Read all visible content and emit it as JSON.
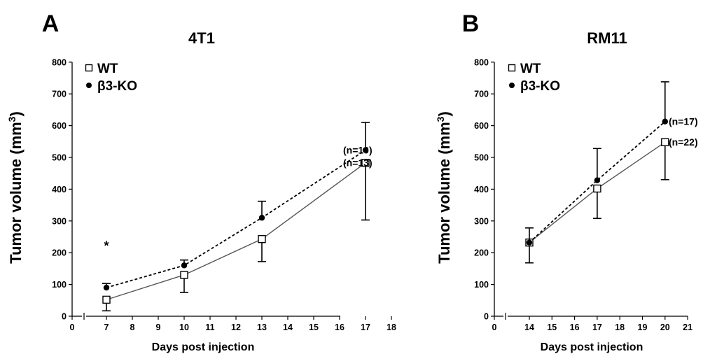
{
  "chart_data": [
    {
      "panel": "A",
      "type": "line",
      "title": "4T1",
      "xlabel": "Days post injection",
      "ylabel": "Tumor volume (mm",
      "ylabel_sup": "3",
      "ylabel_close": ")",
      "xlim": [
        0,
        18
      ],
      "ylim": [
        0,
        800
      ],
      "xticks": [
        0,
        7,
        8,
        9,
        10,
        11,
        12,
        13,
        14,
        15,
        16,
        17,
        18
      ],
      "yticks": [
        0,
        100,
        200,
        300,
        400,
        500,
        600,
        700,
        800
      ],
      "legend_position": "top-left",
      "series": [
        {
          "name": "WT",
          "marker": "open-square",
          "line": "solid",
          "x": [
            7,
            10,
            13,
            17
          ],
          "y": [
            52,
            130,
            243,
            483
          ],
          "err_lower": [
            17,
            75,
            172,
            303
          ],
          "err_upper": [
            52,
            130,
            243,
            483
          ],
          "end_label": "(n=13)"
        },
        {
          "name": "β3-KO",
          "marker": "filled-circle",
          "line": "dashed",
          "x": [
            7,
            10,
            13,
            17
          ],
          "y": [
            90,
            160,
            310,
            523
          ],
          "err_lower": [
            90,
            160,
            310,
            523
          ],
          "err_upper": [
            103,
            177,
            362,
            610
          ],
          "end_label": "(n=10)"
        }
      ],
      "annotations": [
        {
          "text": "*",
          "x": 7,
          "y": 235
        }
      ]
    },
    {
      "panel": "B",
      "type": "line",
      "title": "RM11",
      "xlabel": "Days post injection",
      "ylabel": "Tumor volume (mm",
      "ylabel_sup": "3",
      "ylabel_close": ")",
      "xlim": [
        0,
        21
      ],
      "ylim": [
        0,
        800
      ],
      "xticks": [
        0,
        14,
        15,
        16,
        17,
        18,
        19,
        20,
        21
      ],
      "yticks": [
        0,
        100,
        200,
        300,
        400,
        500,
        600,
        700,
        800
      ],
      "legend_position": "top-left",
      "series": [
        {
          "name": "WT",
          "marker": "open-square",
          "line": "solid",
          "x": [
            14,
            17,
            20
          ],
          "y": [
            232,
            402,
            548
          ],
          "err_lower": [
            168,
            308,
            430
          ],
          "err_upper": [
            232,
            402,
            548
          ],
          "end_label": "(n=22)"
        },
        {
          "name": "β3-KO",
          "marker": "filled-circle",
          "line": "dashed",
          "x": [
            14,
            17,
            20
          ],
          "y": [
            232,
            428,
            613
          ],
          "err_lower": [
            232,
            428,
            613
          ],
          "err_upper": [
            278,
            528,
            738
          ],
          "end_label": "(n=17)"
        }
      ],
      "annotations": []
    }
  ]
}
